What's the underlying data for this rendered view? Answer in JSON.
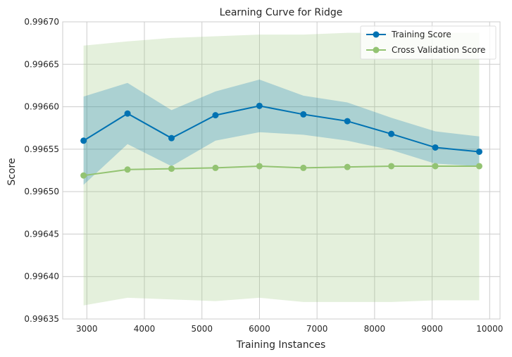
{
  "chart_data": {
    "type": "line",
    "title": "Learning Curve for Ridge",
    "xlabel": "Training Instances",
    "ylabel": "Score",
    "xlim": [
      2580,
      10180
    ],
    "ylim": [
      0.99635,
      0.9967
    ],
    "xticks": [
      3000,
      4000,
      5000,
      6000,
      7000,
      8000,
      9000,
      10000
    ],
    "yticks": [
      0.99635,
      0.9964,
      0.99645,
      0.9965,
      0.99655,
      0.9966,
      0.99665,
      0.9967
    ],
    "xtick_labels": [
      "3000",
      "4000",
      "5000",
      "6000",
      "7000",
      "8000",
      "9000",
      "10000"
    ],
    "ytick_labels": [
      "0.99635",
      "0.99640",
      "0.99645",
      "0.99650",
      "0.99655",
      "0.99660",
      "0.99665",
      "0.99670"
    ],
    "grid": true,
    "legend_position": "top-right",
    "x": [
      2943,
      3707,
      4471,
      5235,
      5999,
      6763,
      7527,
      8291,
      9055,
      9819
    ],
    "series": [
      {
        "name": "Training Score",
        "color": "#0072B2",
        "band_color": "#0072B2",
        "values": [
          0.99656,
          0.996592,
          0.996563,
          0.99659,
          0.996601,
          0.996591,
          0.996583,
          0.996568,
          0.996552,
          0.996547
        ],
        "lower": [
          0.996508,
          0.996556,
          0.99653,
          0.99656,
          0.99657,
          0.996567,
          0.99656,
          0.996549,
          0.996533,
          0.99653
        ],
        "upper": [
          0.996612,
          0.996628,
          0.996596,
          0.996618,
          0.996632,
          0.996613,
          0.996605,
          0.996587,
          0.996571,
          0.996565
        ]
      },
      {
        "name": "Cross Validation Score",
        "color": "#93C372",
        "band_color": "#93C372",
        "values": [
          0.996519,
          0.996526,
          0.996527,
          0.996528,
          0.99653,
          0.996528,
          0.996529,
          0.99653,
          0.99653,
          0.99653
        ],
        "lower": [
          0.996366,
          0.996375,
          0.996373,
          0.996371,
          0.996375,
          0.99637,
          0.99637,
          0.99637,
          0.996372,
          0.996372
        ],
        "upper": [
          0.996672,
          0.996677,
          0.996681,
          0.996683,
          0.996685,
          0.996685,
          0.996687,
          0.996687,
          0.996687,
          0.996687
        ]
      }
    ]
  }
}
